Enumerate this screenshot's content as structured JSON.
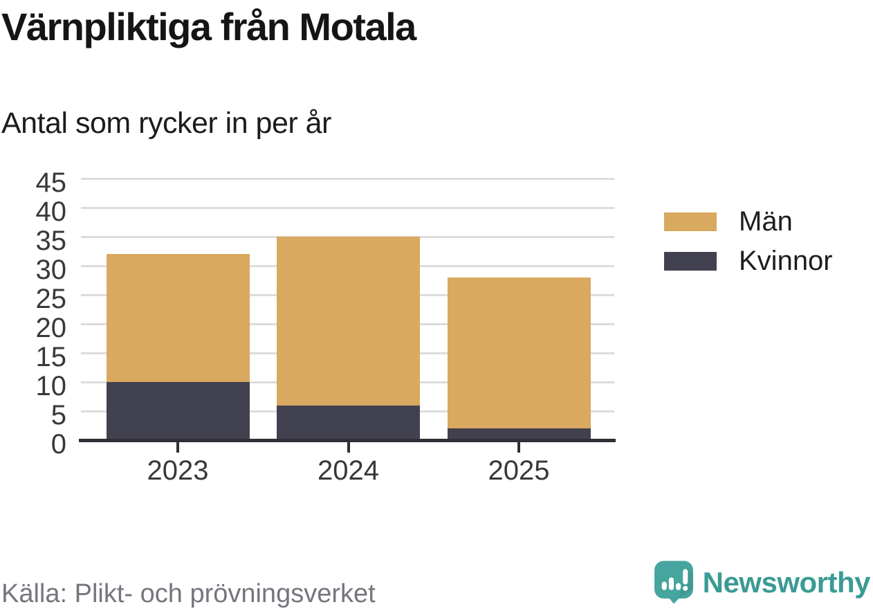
{
  "chart_data": {
    "type": "bar",
    "stacked": true,
    "title": "Värnpliktiga från Motala",
    "subtitle": "Antal som rycker in per år",
    "categories": [
      "2023",
      "2024",
      "2025"
    ],
    "series": [
      {
        "name": "Kvinnor",
        "color": "#424150",
        "values": [
          10,
          6,
          2
        ]
      },
      {
        "name": "Män",
        "color": "#d8a95e",
        "values": [
          22,
          29,
          26
        ]
      }
    ],
    "stack_totals": [
      32,
      35,
      28
    ],
    "xlabel": "",
    "ylabel": "",
    "ylim": [
      0,
      45
    ],
    "y_ticks": [
      0,
      5,
      10,
      15,
      20,
      25,
      30,
      35,
      40,
      45
    ],
    "grid": true,
    "legend_position": "right"
  },
  "legend": {
    "items": [
      {
        "label": "Män",
        "color": "#d8a95e"
      },
      {
        "label": "Kvinnor",
        "color": "#424150"
      }
    ]
  },
  "footer": {
    "source": "Källa: Plikt- och prövningsverket",
    "brand": "Newsworthy"
  },
  "colors": {
    "bar_men": "#d8a95e",
    "bar_women": "#424150",
    "gridline": "#dcdcdc",
    "axis": "#302f38",
    "tick_label": "#383838",
    "title_text": "#151515",
    "source_text": "#76757e",
    "brand_teal": "#3a9b94",
    "background": "#ffffff"
  },
  "icons": {
    "newsworthy_logo": "speech-bubble-with-bar-chart-and-exclamation-icon"
  }
}
